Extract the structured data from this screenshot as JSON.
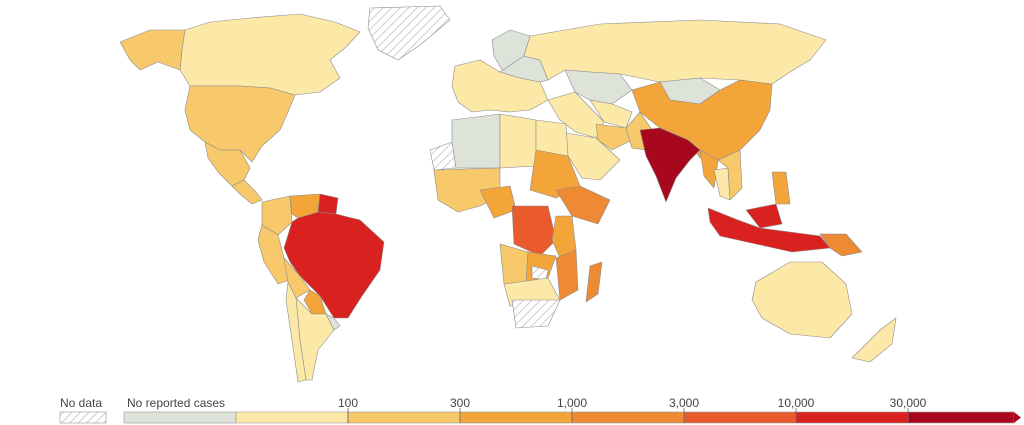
{
  "legend": {
    "no_data_label": "No data",
    "no_reported_label": "No reported cases",
    "ticks": [
      "100",
      "300",
      "1,000",
      "3,000",
      "10,000",
      "30,000"
    ]
  },
  "colors": {
    "no_data_hatch": "#bdbdbd",
    "no_reported": "#dde3d8",
    "bin_1_100": "#fde9a7",
    "bin_100_300": "#f8c96a",
    "bin_300_1000": "#f3a53a",
    "bin_1000_3000": "#ee8a33",
    "bin_3000_10000": "#e95b2d",
    "bin_10000_30000": "#d9221f",
    "bin_30000_plus": "#a8081e",
    "border": "#8c8c8c",
    "background": "#ffffff"
  },
  "regions": [
    {
      "name": "Canada",
      "bin": "bin_1_100"
    },
    {
      "name": "Alaska",
      "bin": "bin_100_300"
    },
    {
      "name": "United States",
      "bin": "bin_100_300"
    },
    {
      "name": "Mexico",
      "bin": "bin_100_300"
    },
    {
      "name": "Central America",
      "bin": "bin_100_300"
    },
    {
      "name": "Greenland",
      "bin": "no_data"
    },
    {
      "name": "Brazil",
      "bin": "bin_10000_30000"
    },
    {
      "name": "Colombia",
      "bin": "bin_100_300"
    },
    {
      "name": "Venezuela",
      "bin": "bin_300_1000"
    },
    {
      "name": "Guianas",
      "bin": "bin_10000_30000"
    },
    {
      "name": "Peru",
      "bin": "bin_100_300"
    },
    {
      "name": "Bolivia",
      "bin": "bin_100_300"
    },
    {
      "name": "Paraguay",
      "bin": "bin_300_1000"
    },
    {
      "name": "Argentina",
      "bin": "bin_1_100"
    },
    {
      "name": "Chile",
      "bin": "bin_1_100"
    },
    {
      "name": "Uruguay",
      "bin": "no_reported"
    },
    {
      "name": "Europe",
      "bin": "bin_1_100"
    },
    {
      "name": "Scandinavia",
      "bin": "no_reported"
    },
    {
      "name": "Eastern Europe",
      "bin": "no_reported"
    },
    {
      "name": "Russia",
      "bin": "bin_1_100"
    },
    {
      "name": "Kazakhstan",
      "bin": "no_reported"
    },
    {
      "name": "Mongolia",
      "bin": "no_reported"
    },
    {
      "name": "China",
      "bin": "bin_300_1000"
    },
    {
      "name": "Central Asia",
      "bin": "bin_1_100"
    },
    {
      "name": "Middle East",
      "bin": "bin_1_100"
    },
    {
      "name": "Arabian Peninsula",
      "bin": "bin_1_100"
    },
    {
      "name": "Iran",
      "bin": "bin_100_300"
    },
    {
      "name": "Pakistan",
      "bin": "bin_100_300"
    },
    {
      "name": "India",
      "bin": "bin_30000_plus"
    },
    {
      "name": "Myanmar",
      "bin": "bin_300_1000"
    },
    {
      "name": "Thailand",
      "bin": "bin_1_100"
    },
    {
      "name": "Vietnam",
      "bin": "bin_100_300"
    },
    {
      "name": "Philippines",
      "bin": "bin_300_1000"
    },
    {
      "name": "Indonesia",
      "bin": "bin_10000_30000"
    },
    {
      "name": "Papua New Guinea",
      "bin": "bin_1000_3000"
    },
    {
      "name": "Australia",
      "bin": "bin_1_100"
    },
    {
      "name": "New Zealand",
      "bin": "bin_1_100"
    },
    {
      "name": "Western Sahara",
      "bin": "no_data"
    },
    {
      "name": "Algeria",
      "bin": "no_reported"
    },
    {
      "name": "Libya",
      "bin": "bin_1_100"
    },
    {
      "name": "Egypt",
      "bin": "bin_1_100"
    },
    {
      "name": "West Africa",
      "bin": "bin_100_300"
    },
    {
      "name": "Nigeria",
      "bin": "bin_300_1000"
    },
    {
      "name": "Sudan",
      "bin": "bin_300_1000"
    },
    {
      "name": "Ethiopia",
      "bin": "bin_1000_3000"
    },
    {
      "name": "DR Congo",
      "bin": "bin_3000_10000"
    },
    {
      "name": "Tanzania",
      "bin": "bin_300_1000"
    },
    {
      "name": "Angola",
      "bin": "bin_100_300"
    },
    {
      "name": "Zambia",
      "bin": "bin_300_1000"
    },
    {
      "name": "Mozambique",
      "bin": "bin_1000_3000"
    },
    {
      "name": "Zimbabwe",
      "bin": "no_data"
    },
    {
      "name": "Southern Africa",
      "bin": "bin_1_100"
    },
    {
      "name": "South Africa",
      "bin": "no_data"
    },
    {
      "name": "Madagascar",
      "bin": "bin_1000_3000"
    }
  ]
}
